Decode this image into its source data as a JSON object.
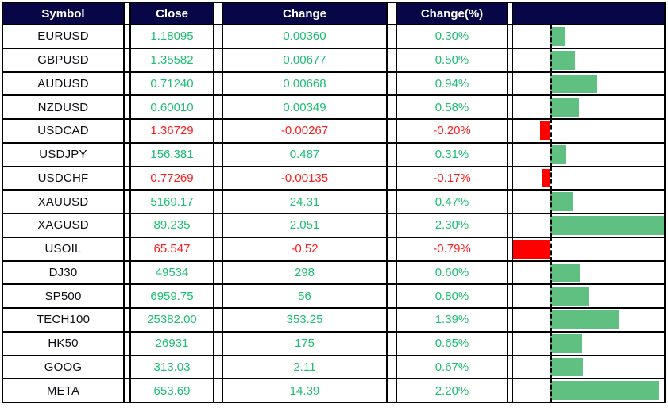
{
  "table": {
    "headers": {
      "symbol": "Symbol",
      "close": "Close",
      "change": "Change",
      "change_pct": "Change(%)",
      "bar": ""
    },
    "rows": [
      {
        "symbol": "EURUSD",
        "close": "1.18095",
        "change": "0.00360",
        "change_pct_label": "0.30%",
        "change_pct": 0.3
      },
      {
        "symbol": "GBPUSD",
        "close": "1.35582",
        "change": "0.00677",
        "change_pct_label": "0.50%",
        "change_pct": 0.5
      },
      {
        "symbol": "AUDUSD",
        "close": "0.71240",
        "change": "0.00668",
        "change_pct_label": "0.94%",
        "change_pct": 0.94
      },
      {
        "symbol": "NZDUSD",
        "close": "0.60010",
        "change": "0.00349",
        "change_pct_label": "0.58%",
        "change_pct": 0.58
      },
      {
        "symbol": "USDCAD",
        "close": "1.36729",
        "change": "-0.00267",
        "change_pct_label": "-0.20%",
        "change_pct": -0.2
      },
      {
        "symbol": "USDJPY",
        "close": "156.381",
        "change": "0.487",
        "change_pct_label": "0.31%",
        "change_pct": 0.31
      },
      {
        "symbol": "USDCHF",
        "close": "0.77269",
        "change": "-0.00135",
        "change_pct_label": "-0.17%",
        "change_pct": -0.17
      },
      {
        "symbol": "XAUUSD",
        "close": "5169.17",
        "change": "24.31",
        "change_pct_label": "0.47%",
        "change_pct": 0.47
      },
      {
        "symbol": "XAGUSD",
        "close": "89.235",
        "change": "2.051",
        "change_pct_label": "2.30%",
        "change_pct": 2.3
      },
      {
        "symbol": "USOIL",
        "close": "65.547",
        "change": "-0.52",
        "change_pct_label": "-0.79%",
        "change_pct": -0.79
      },
      {
        "symbol": "DJ30",
        "close": "49534",
        "change": "298",
        "change_pct_label": "0.60%",
        "change_pct": 0.6
      },
      {
        "symbol": "SP500",
        "close": "6959.75",
        "change": "56",
        "change_pct_label": "0.80%",
        "change_pct": 0.8
      },
      {
        "symbol": "TECH100",
        "close": "25382.00",
        "change": "353.25",
        "change_pct_label": "1.39%",
        "change_pct": 1.39
      },
      {
        "symbol": "HK50",
        "close": "26931",
        "change": "175",
        "change_pct_label": "0.65%",
        "change_pct": 0.65
      },
      {
        "symbol": "GOOG",
        "close": "313.03",
        "change": "2.11",
        "change_pct_label": "0.67%",
        "change_pct": 0.67
      },
      {
        "symbol": "META",
        "close": "653.69",
        "change": "14.39",
        "change_pct_label": "2.20%",
        "change_pct": 2.2
      }
    ]
  },
  "colors": {
    "header_bg": "#070747",
    "header_text": "#FFFFFF",
    "up_text": "#1CBE71",
    "down_text": "#FA1D1D",
    "bar_up": "#5FC081",
    "bar_down": "#FE0000",
    "border": "#000000",
    "symbol_text": "#0D0D14"
  },
  "chart_data": {
    "type": "bar",
    "orientation": "horizontal",
    "title": "",
    "xlabel": "Change(%)",
    "ylabel": "",
    "categories": [
      "EURUSD",
      "GBPUSD",
      "AUDUSD",
      "NZDUSD",
      "USDCAD",
      "USDJPY",
      "USDCHF",
      "XAUUSD",
      "XAGUSD",
      "USOIL",
      "DJ30",
      "SP500",
      "TECH100",
      "HK50",
      "GOOG",
      "META"
    ],
    "values": [
      0.3,
      0.5,
      0.94,
      0.58,
      -0.2,
      0.31,
      -0.17,
      0.47,
      2.3,
      -0.79,
      0.6,
      0.8,
      1.39,
      0.65,
      0.67,
      2.2
    ],
    "xlim": [
      -0.79,
      2.3
    ],
    "zero_line": "dashed",
    "grid": false,
    "legend": false,
    "bar_color_positive": "#5FC081",
    "bar_color_negative": "#FE0000"
  }
}
